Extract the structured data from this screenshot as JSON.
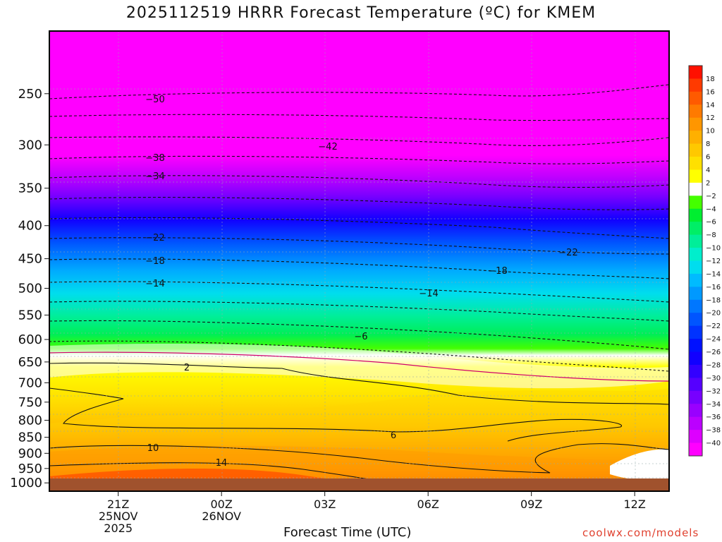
{
  "chart_data": {
    "type": "heatmap",
    "title": "2025112519 HRRR Forecast Temperature (ºC) for KMEM",
    "xlabel": "Forecast Time (UTC)",
    "credit": "coolwx.com/models",
    "y_axis": {
      "scale": "log-pressure",
      "ticks": [
        250,
        300,
        350,
        400,
        450,
        500,
        550,
        600,
        650,
        700,
        750,
        800,
        850,
        900,
        950,
        1000
      ],
      "range_hPa": [
        200,
        1030
      ]
    },
    "x_axis": {
      "range_hours_utc": [
        "19Z 25NOV 2025",
        "13Z 26NOV 2025"
      ],
      "ticks": [
        {
          "hour": 21,
          "label": "21Z",
          "label2": "25NOV",
          "label3": "2025"
        },
        {
          "hour": 24,
          "label": "00Z",
          "label2": "26NOV",
          "label3": ""
        },
        {
          "hour": 27,
          "label": "03Z",
          "label2": "",
          "label3": ""
        },
        {
          "hour": 30,
          "label": "06Z",
          "label2": "",
          "label3": ""
        },
        {
          "hour": 33,
          "label": "09Z",
          "label2": "",
          "label3": ""
        },
        {
          "hour": 36,
          "label": "12Z",
          "label2": "",
          "label3": ""
        }
      ]
    },
    "colorbar": {
      "labels": [
        "18",
        "16",
        "14",
        "12",
        "10",
        "8",
        "6",
        "4",
        "2",
        "−2",
        "−4",
        "−6",
        "−8",
        "−10",
        "−12",
        "−14",
        "−16",
        "−18",
        "−20",
        "−22",
        "−24",
        "−26",
        "−28",
        "−30",
        "−32",
        "−34",
        "−36",
        "−38",
        "−40"
      ],
      "colors": [
        "#ff1000",
        "#ff3a00",
        "#ff5a00",
        "#ff7a00",
        "#ff9600",
        "#ffb000",
        "#ffc800",
        "#ffe000",
        "#ffff00",
        "#ffffff",
        "#44ff00",
        "#00ee30",
        "#00ee66",
        "#00ee99",
        "#00eecc",
        "#00ddee",
        "#00bbff",
        "#0099ff",
        "#0077ff",
        "#0055ff",
        "#0033ff",
        "#0011ff",
        "#1100ff",
        "#3300ff",
        "#5500ff",
        "#7700ff",
        "#9900ff",
        "#bb00ff",
        "#dd00ff",
        "#ff00ff"
      ]
    },
    "grid": true,
    "contour_labels": [
      "−50",
      "−42",
      "−38",
      "−34",
      "−22",
      "−18",
      "−14",
      "−6",
      "2",
      "6",
      "10",
      "14",
      "−14",
      "−18",
      "−22"
    ]
  }
}
